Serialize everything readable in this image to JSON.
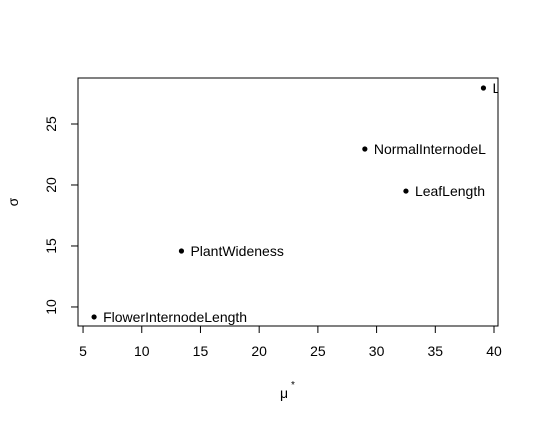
{
  "chart_data": {
    "type": "scatter",
    "x_label": "μ",
    "x_label_superscript": "*",
    "y_label": "σ",
    "x": [
      5.94,
      13.38,
      29.0,
      32.5,
      39.1
    ],
    "y": [
      9.18,
      14.59,
      22.95,
      19.5,
      27.95
    ],
    "point_labels": [
      "FlowerInternodeLength",
      "PlantWideness",
      "NormalInternodeL",
      "LeafLength",
      "L"
    ],
    "color": "#000000",
    "xlim": [
      4.57,
      40.34
    ],
    "xticks": [
      5,
      10,
      15,
      20,
      25,
      30,
      35,
      40
    ],
    "ylim": [
      8.44,
      28.77
    ],
    "yticks": [
      10,
      15,
      20,
      25
    ],
    "grid": false
  }
}
